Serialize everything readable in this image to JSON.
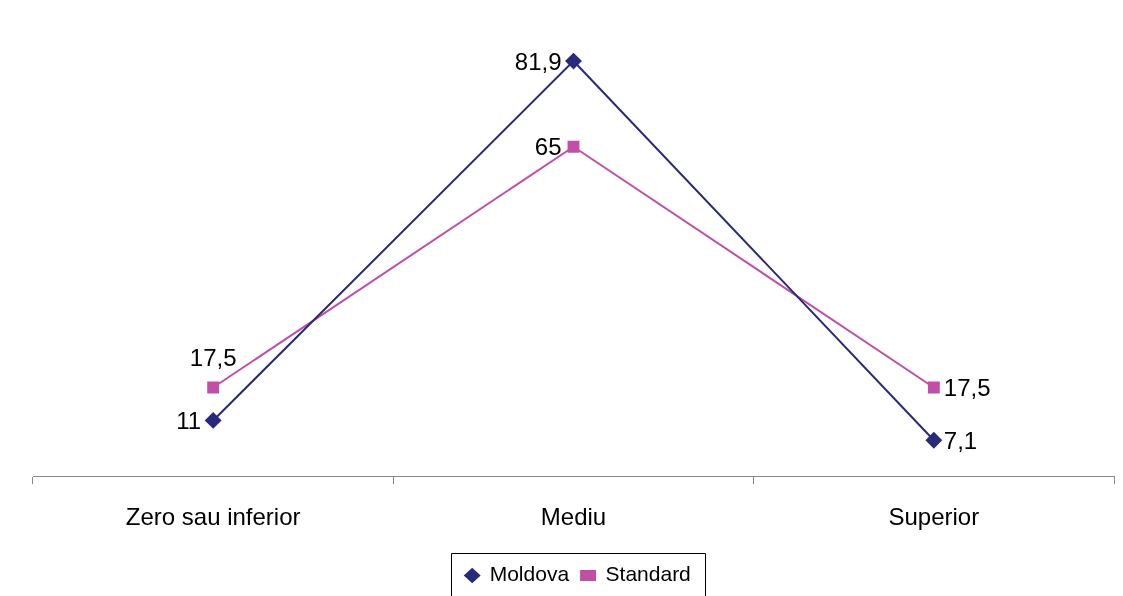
{
  "chart_data": {
    "type": "line",
    "categories": [
      "Zero sau inferior",
      "Mediu",
      "Superior"
    ],
    "series": [
      {
        "name": "Moldova",
        "color": "#2a2a7c",
        "marker": "diamond",
        "values": [
          11,
          81.9,
          7.1
        ],
        "value_labels": [
          "11",
          "81,9",
          "7,1"
        ]
      },
      {
        "name": "Standard",
        "color": "#c04fa8",
        "marker": "square",
        "values": [
          17.5,
          65,
          17.5
        ],
        "value_labels": [
          "17,5",
          "65",
          "17,5"
        ]
      }
    ],
    "tick_labels": "x",
    "grid": false,
    "legend": "bottom"
  }
}
